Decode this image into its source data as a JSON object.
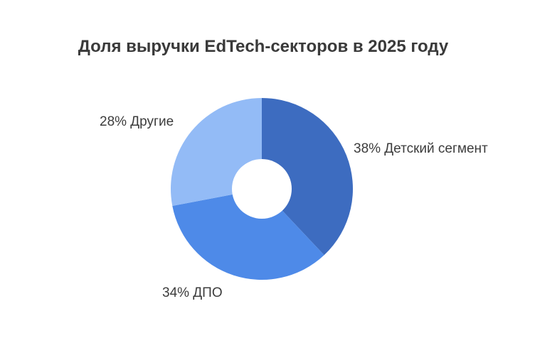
{
  "chart_data": {
    "type": "pie",
    "variant": "donut",
    "title": "Доля выручки EdTech-секторов в 2025 году",
    "slices": [
      {
        "label": "38% Детский сегмент",
        "value": 38,
        "color": "#3d6cc0"
      },
      {
        "label": "34% ДПО",
        "value": 34,
        "color": "#4e8ae8"
      },
      {
        "label": "28% Другие",
        "value": 28,
        "color": "#93bbf6"
      }
    ],
    "legend": "none"
  }
}
